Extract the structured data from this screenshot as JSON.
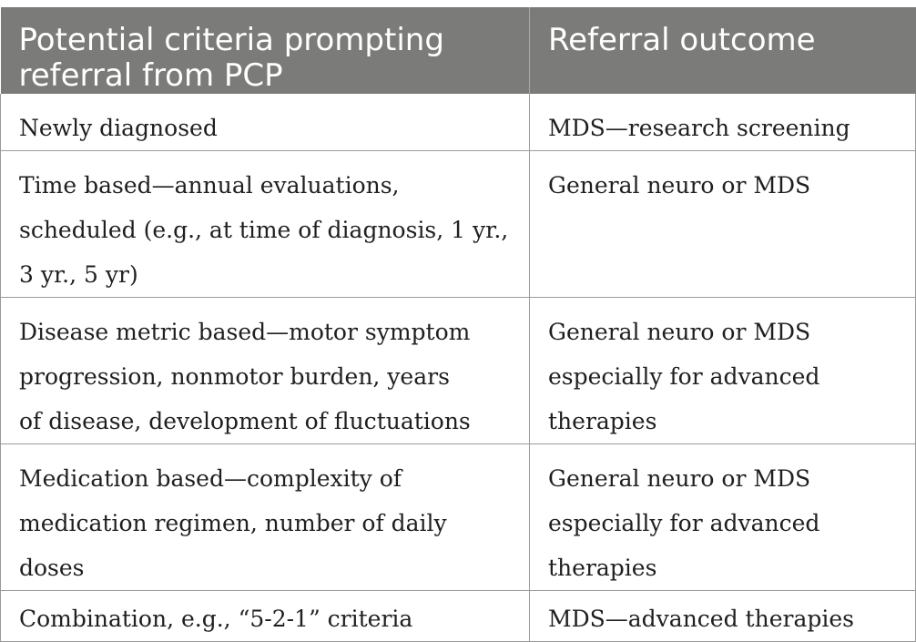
{
  "headers": [
    "Potential criteria prompting referral from PCP",
    "Referral outcome"
  ],
  "rows": [
    {
      "criteria": "Newly diagnosed",
      "outcome": "MDS—research screening"
    },
    {
      "criteria": "Time based—annual evaluations, scheduled (e.g., at time of diagnosis, 1 yr., 3 yr., 5 yr)",
      "outcome": "General neuro or MDS"
    },
    {
      "criteria": "Disease metric based—motor symptom progression, nonmotor burden, years of disease, development of fluctuations",
      "outcome": "General neuro or MDS especially for advanced therapies"
    },
    {
      "criteria": "Medication based—complexity of medication regimen, number of daily doses",
      "outcome": "General neuro or MDS especially for advanced therapies"
    },
    {
      "criteria": "Combination, e.g., “5-2-1” criteria",
      "outcome": "MDS—advanced therapies"
    }
  ],
  "colors": {
    "header_bg": "#7b7b79",
    "header_text": "#ffffff",
    "body_text": "#1f1f1f",
    "border": "#9a9a9a"
  }
}
